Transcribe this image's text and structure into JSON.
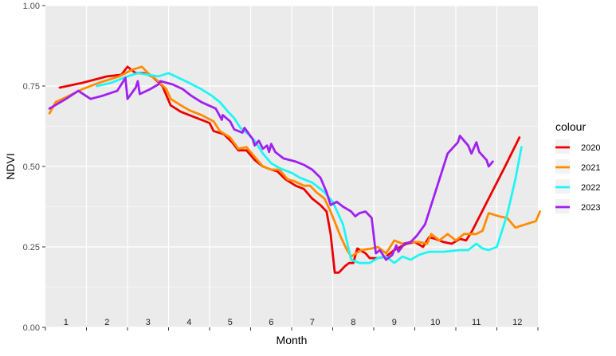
{
  "chart_data": {
    "type": "line",
    "title": "",
    "xlabel": "Month",
    "ylabel": "NDVI",
    "xlim": [
      0.5,
      12.5
    ],
    "ylim": [
      0,
      1
    ],
    "categories": [
      "1",
      "2",
      "3",
      "4",
      "5",
      "6",
      "7",
      "8",
      "9",
      "10",
      "11",
      "12"
    ],
    "y_ticks": [
      "0.00",
      "0.25",
      "0.50",
      "0.75",
      "1.00"
    ],
    "grid": true,
    "legend": {
      "title": "colour",
      "position": "right"
    },
    "background": "#ebebeb",
    "series": [
      {
        "name": "2020",
        "color": "#ee0000",
        "points": [
          [
            0.85,
            0.745
          ],
          [
            1.4,
            0.76
          ],
          [
            2.0,
            0.78
          ],
          [
            2.35,
            0.785
          ],
          [
            2.5,
            0.81
          ],
          [
            2.7,
            0.79
          ],
          [
            2.9,
            0.79
          ],
          [
            3.1,
            0.78
          ],
          [
            3.35,
            0.75
          ],
          [
            3.55,
            0.69
          ],
          [
            3.8,
            0.67
          ],
          [
            4.0,
            0.66
          ],
          [
            4.3,
            0.645
          ],
          [
            4.5,
            0.635
          ],
          [
            4.6,
            0.61
          ],
          [
            4.85,
            0.6
          ],
          [
            5.05,
            0.575
          ],
          [
            5.2,
            0.55
          ],
          [
            5.4,
            0.55
          ],
          [
            5.6,
            0.52
          ],
          [
            5.8,
            0.5
          ],
          [
            6.0,
            0.49
          ],
          [
            6.15,
            0.485
          ],
          [
            6.35,
            0.46
          ],
          [
            6.6,
            0.44
          ],
          [
            6.8,
            0.43
          ],
          [
            7.0,
            0.4
          ],
          [
            7.2,
            0.38
          ],
          [
            7.35,
            0.36
          ],
          [
            7.45,
            0.29
          ],
          [
            7.55,
            0.17
          ],
          [
            7.65,
            0.17
          ],
          [
            7.8,
            0.19
          ],
          [
            7.9,
            0.2
          ],
          [
            8.0,
            0.2
          ],
          [
            8.1,
            0.245
          ],
          [
            8.3,
            0.23
          ],
          [
            8.4,
            0.215
          ],
          [
            8.6,
            0.215
          ],
          [
            8.8,
            0.22
          ],
          [
            9.0,
            0.24
          ],
          [
            9.3,
            0.26
          ],
          [
            9.5,
            0.265
          ],
          [
            9.7,
            0.25
          ],
          [
            9.85,
            0.28
          ],
          [
            10.0,
            0.275
          ],
          [
            10.2,
            0.265
          ],
          [
            10.4,
            0.26
          ],
          [
            10.6,
            0.275
          ],
          [
            10.75,
            0.27
          ],
          [
            10.9,
            0.3
          ],
          [
            11.3,
            0.4
          ],
          [
            11.7,
            0.5
          ],
          [
            12.05,
            0.59
          ]
        ]
      },
      {
        "name": "2021",
        "color": "#ff8c00",
        "points": [
          [
            0.6,
            0.665
          ],
          [
            0.75,
            0.7
          ],
          [
            1.0,
            0.715
          ],
          [
            1.4,
            0.74
          ],
          [
            1.8,
            0.76
          ],
          [
            2.3,
            0.78
          ],
          [
            2.6,
            0.8
          ],
          [
            2.85,
            0.81
          ],
          [
            3.0,
            0.79
          ],
          [
            3.2,
            0.77
          ],
          [
            3.45,
            0.74
          ],
          [
            3.55,
            0.71
          ],
          [
            3.8,
            0.69
          ],
          [
            4.0,
            0.675
          ],
          [
            4.3,
            0.66
          ],
          [
            4.6,
            0.64
          ],
          [
            4.75,
            0.61
          ],
          [
            5.0,
            0.59
          ],
          [
            5.2,
            0.555
          ],
          [
            5.4,
            0.56
          ],
          [
            5.6,
            0.53
          ],
          [
            5.8,
            0.5
          ],
          [
            6.0,
            0.49
          ],
          [
            6.2,
            0.49
          ],
          [
            6.4,
            0.46
          ],
          [
            6.55,
            0.455
          ],
          [
            6.8,
            0.44
          ],
          [
            6.95,
            0.44
          ],
          [
            7.1,
            0.42
          ],
          [
            7.3,
            0.4
          ],
          [
            7.45,
            0.36
          ],
          [
            7.7,
            0.28
          ],
          [
            7.85,
            0.24
          ],
          [
            7.95,
            0.22
          ],
          [
            8.2,
            0.24
          ],
          [
            8.45,
            0.245
          ],
          [
            8.6,
            0.25
          ],
          [
            8.8,
            0.23
          ],
          [
            9.0,
            0.27
          ],
          [
            9.2,
            0.26
          ],
          [
            9.4,
            0.265
          ],
          [
            9.6,
            0.265
          ],
          [
            9.8,
            0.26
          ],
          [
            9.9,
            0.29
          ],
          [
            10.1,
            0.27
          ],
          [
            10.3,
            0.29
          ],
          [
            10.5,
            0.27
          ],
          [
            10.7,
            0.29
          ],
          [
            10.8,
            0.29
          ],
          [
            11.0,
            0.29
          ],
          [
            11.15,
            0.3
          ],
          [
            11.3,
            0.355
          ],
          [
            11.55,
            0.345
          ],
          [
            11.75,
            0.34
          ],
          [
            11.95,
            0.31
          ],
          [
            12.2,
            0.32
          ],
          [
            12.45,
            0.33
          ],
          [
            12.55,
            0.36
          ]
        ]
      },
      {
        "name": "2022",
        "color": "#1ff5f5",
        "points": [
          [
            1.75,
            0.75
          ],
          [
            2.1,
            0.76
          ],
          [
            2.5,
            0.78
          ],
          [
            2.75,
            0.79
          ],
          [
            3.0,
            0.785
          ],
          [
            3.25,
            0.78
          ],
          [
            3.5,
            0.79
          ],
          [
            3.75,
            0.775
          ],
          [
            4.0,
            0.76
          ],
          [
            4.3,
            0.74
          ],
          [
            4.55,
            0.72
          ],
          [
            4.75,
            0.7
          ],
          [
            4.95,
            0.67
          ],
          [
            5.1,
            0.65
          ],
          [
            5.25,
            0.62
          ],
          [
            5.45,
            0.6
          ],
          [
            5.6,
            0.58
          ],
          [
            5.8,
            0.54
          ],
          [
            6.0,
            0.51
          ],
          [
            6.2,
            0.495
          ],
          [
            6.5,
            0.48
          ],
          [
            6.7,
            0.465
          ],
          [
            7.0,
            0.45
          ],
          [
            7.3,
            0.42
          ],
          [
            7.5,
            0.39
          ],
          [
            7.75,
            0.32
          ],
          [
            7.95,
            0.21
          ],
          [
            8.15,
            0.2
          ],
          [
            8.4,
            0.2
          ],
          [
            8.6,
            0.215
          ],
          [
            8.8,
            0.22
          ],
          [
            9.0,
            0.2
          ],
          [
            9.2,
            0.22
          ],
          [
            9.4,
            0.21
          ],
          [
            9.6,
            0.225
          ],
          [
            9.85,
            0.235
          ],
          [
            10.2,
            0.235
          ],
          [
            10.6,
            0.24
          ],
          [
            10.8,
            0.24
          ],
          [
            11.0,
            0.26
          ],
          [
            11.15,
            0.245
          ],
          [
            11.3,
            0.24
          ],
          [
            11.5,
            0.25
          ],
          [
            11.75,
            0.35
          ],
          [
            11.95,
            0.46
          ],
          [
            12.1,
            0.56
          ]
        ]
      },
      {
        "name": "2023",
        "color": "#a020f0",
        "points": [
          [
            0.6,
            0.68
          ],
          [
            1.0,
            0.71
          ],
          [
            1.3,
            0.735
          ],
          [
            1.6,
            0.71
          ],
          [
            1.9,
            0.72
          ],
          [
            2.25,
            0.735
          ],
          [
            2.45,
            0.775
          ],
          [
            2.5,
            0.71
          ],
          [
            2.7,
            0.745
          ],
          [
            2.75,
            0.765
          ],
          [
            2.8,
            0.725
          ],
          [
            3.05,
            0.74
          ],
          [
            3.25,
            0.755
          ],
          [
            3.3,
            0.765
          ],
          [
            3.6,
            0.755
          ],
          [
            3.85,
            0.74
          ],
          [
            4.05,
            0.72
          ],
          [
            4.3,
            0.7
          ],
          [
            4.65,
            0.68
          ],
          [
            4.8,
            0.645
          ],
          [
            4.82,
            0.66
          ],
          [
            5.0,
            0.64
          ],
          [
            5.1,
            0.615
          ],
          [
            5.3,
            0.605
          ],
          [
            5.35,
            0.62
          ],
          [
            5.55,
            0.585
          ],
          [
            5.6,
            0.565
          ],
          [
            5.7,
            0.58
          ],
          [
            5.8,
            0.555
          ],
          [
            5.9,
            0.565
          ],
          [
            5.95,
            0.545
          ],
          [
            6.0,
            0.57
          ],
          [
            6.1,
            0.545
          ],
          [
            6.3,
            0.525
          ],
          [
            6.6,
            0.515
          ],
          [
            6.8,
            0.505
          ],
          [
            7.0,
            0.49
          ],
          [
            7.2,
            0.465
          ],
          [
            7.35,
            0.42
          ],
          [
            7.45,
            0.38
          ],
          [
            7.6,
            0.39
          ],
          [
            7.75,
            0.375
          ],
          [
            7.95,
            0.36
          ],
          [
            8.05,
            0.345
          ],
          [
            8.15,
            0.355
          ],
          [
            8.3,
            0.36
          ],
          [
            8.45,
            0.34
          ],
          [
            8.55,
            0.23
          ],
          [
            8.65,
            0.24
          ],
          [
            8.8,
            0.21
          ],
          [
            8.95,
            0.225
          ],
          [
            9.05,
            0.255
          ],
          [
            9.1,
            0.235
          ],
          [
            9.25,
            0.26
          ],
          [
            9.4,
            0.265
          ],
          [
            9.55,
            0.285
          ],
          [
            9.75,
            0.32
          ],
          [
            9.9,
            0.38
          ],
          [
            10.1,
            0.46
          ],
          [
            10.3,
            0.54
          ],
          [
            10.55,
            0.575
          ],
          [
            10.6,
            0.595
          ],
          [
            10.8,
            0.565
          ],
          [
            10.88,
            0.54
          ],
          [
            11.0,
            0.575
          ],
          [
            11.07,
            0.545
          ],
          [
            11.25,
            0.52
          ],
          [
            11.3,
            0.5
          ],
          [
            11.4,
            0.515
          ]
        ]
      }
    ]
  }
}
